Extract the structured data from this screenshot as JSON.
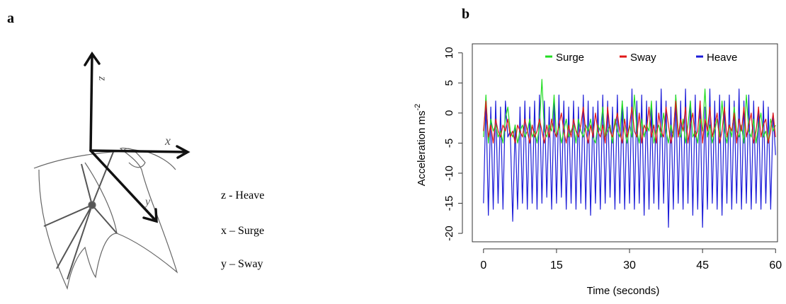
{
  "panel_a": {
    "label": "a",
    "axes": {
      "z": "z",
      "x": "x",
      "y": "y"
    },
    "key": [
      "z - Heave",
      "x – Surge",
      "y – Sway"
    ]
  },
  "chart_data": {
    "type": "line",
    "panel_label": "b",
    "xlabel": "Time (seconds)",
    "ylabel": {
      "text": "Acceleration ms",
      "superscript": "-2"
    },
    "xlim": [
      -2.3,
      60.4
    ],
    "ylim": [
      -21.4,
      11.5
    ],
    "xticks": [
      0,
      15,
      30,
      45,
      60
    ],
    "yticks": [
      -20,
      -15,
      -10,
      -5,
      0,
      5,
      10
    ],
    "x": [
      0,
      0.5,
      1,
      1.5,
      2,
      2.5,
      3,
      3.5,
      4,
      4.5,
      5,
      5.5,
      6,
      6.5,
      7,
      7.5,
      8,
      8.5,
      9,
      9.5,
      10,
      10.5,
      11,
      11.5,
      12,
      12.5,
      13,
      13.5,
      14,
      14.5,
      15,
      15.5,
      16,
      16.5,
      17,
      17.5,
      18,
      18.5,
      19,
      19.5,
      20,
      20.5,
      21,
      21.5,
      22,
      22.5,
      23,
      23.5,
      24,
      24.5,
      25,
      25.5,
      26,
      26.5,
      27,
      27.5,
      28,
      28.5,
      29,
      29.5,
      30,
      30.5,
      31,
      31.5,
      32,
      32.5,
      33,
      33.5,
      34,
      34.5,
      35,
      35.5,
      36,
      36.5,
      37,
      37.5,
      38,
      38.5,
      39,
      39.5,
      40,
      40.5,
      41,
      41.5,
      42,
      42.5,
      43,
      43.5,
      44,
      44.5,
      45,
      45.5,
      46,
      46.5,
      47,
      47.5,
      48,
      48.5,
      49,
      49.5,
      50,
      50.5,
      51,
      51.5,
      52,
      52.5,
      53,
      53.5,
      54,
      54.5,
      55,
      55.5,
      56,
      56.5,
      57,
      57.5,
      58,
      58.5,
      59,
      59.5,
      60
    ],
    "series": [
      {
        "name": "Heave",
        "color": "#1c1cd8",
        "values": [
          -15,
          2,
          -17,
          1,
          -16,
          2,
          -15,
          1,
          -16,
          2,
          -4,
          -3,
          -18,
          -2,
          -16,
          1,
          -15,
          2,
          -16,
          1,
          -15,
          2,
          -16,
          3,
          -15,
          2,
          -14,
          1,
          -16,
          2,
          -15,
          3,
          -14,
          2,
          -16,
          1,
          -15,
          2,
          -16,
          1,
          -15,
          3,
          -16,
          2,
          -17,
          1,
          -15,
          2,
          -16,
          3,
          -15,
          2,
          -14,
          1,
          -16,
          3,
          -15,
          2,
          -16,
          1,
          -15,
          4,
          -16,
          2,
          -15,
          3,
          -17,
          2,
          -16,
          1,
          -15,
          2,
          -16,
          4,
          -15,
          2,
          -19,
          1,
          -16,
          3,
          -15,
          2,
          -16,
          4,
          -15,
          2,
          -17,
          3,
          -16,
          2,
          -19,
          1,
          -16,
          4,
          -15,
          2,
          -16,
          3,
          -17,
          2,
          -15,
          3,
          -16,
          2,
          -15,
          4,
          -16,
          2,
          -15,
          3,
          -16,
          2,
          -15,
          1,
          -16,
          2,
          -15,
          1,
          -16,
          0,
          -7
        ]
      },
      {
        "name": "Surge",
        "color": "#22dd22",
        "values": [
          -4,
          3,
          -5,
          -1,
          -3,
          -2,
          -4,
          -3,
          -5,
          -1,
          1,
          -3,
          -4,
          -2,
          -5,
          -3,
          -2,
          -4,
          -3,
          -1,
          -4,
          -3,
          -5,
          -2,
          5.6,
          -3,
          -4,
          -2,
          -3,
          3,
          -4,
          -2,
          -5,
          -3,
          -1,
          -4,
          -3,
          -2,
          -5,
          -1,
          -3,
          -4,
          -2,
          -3,
          -1,
          -4,
          -5,
          -2,
          -3,
          1,
          -4,
          -3,
          -2,
          -5,
          -1,
          -3,
          -4,
          2,
          -3,
          -5,
          -2,
          -4,
          3,
          -3,
          -5,
          -1,
          -4,
          -2,
          -3,
          2,
          -5,
          -3,
          -2,
          -4,
          0,
          -3,
          -5,
          -2,
          -4,
          3,
          -3,
          -4,
          -1,
          -5,
          -2,
          2,
          -4,
          -3,
          -5,
          -1,
          -3,
          4,
          -4,
          -2,
          -5,
          -3,
          -1,
          -4,
          2,
          -3,
          -5,
          -2,
          -4,
          1,
          -3,
          -4,
          -2,
          -5,
          3,
          -3,
          -4,
          -1,
          -5,
          -2,
          0,
          -4,
          -3,
          -5,
          -1,
          -3,
          -2
        ]
      },
      {
        "name": "Sway",
        "color": "#e01818",
        "values": [
          -3,
          2,
          -4,
          -2,
          -5,
          -1,
          -3,
          -4,
          -2,
          -3,
          -1,
          -4,
          -3,
          -5,
          -2,
          -3,
          -4,
          -1,
          -3,
          -5,
          -2,
          -4,
          -3,
          -1,
          -3,
          -5,
          -2,
          -4,
          -1,
          -3,
          -4,
          -2,
          0,
          -3,
          -5,
          -2,
          -4,
          -1,
          -3,
          -4,
          -2,
          1,
          -3,
          -5,
          -2,
          -4,
          0,
          -3,
          -4,
          -2,
          -5,
          1,
          -3,
          -4,
          -2,
          0,
          -3,
          -5,
          -1,
          -4,
          -2,
          1,
          -3,
          -4,
          0,
          -5,
          -2,
          -3,
          1,
          -4,
          -2,
          -5,
          0,
          -3,
          -4,
          1,
          -2,
          -5,
          -3,
          2,
          -4,
          -1,
          -3,
          1,
          -5,
          -2,
          0,
          -4,
          -3,
          2,
          -5,
          -1,
          -3,
          1,
          -4,
          -2,
          0,
          -5,
          -3,
          1,
          -4,
          -2,
          -3,
          0,
          -5,
          -1,
          -3,
          1,
          -4,
          -2,
          0,
          -5,
          -3,
          1,
          -4,
          -2,
          -1,
          -5,
          -3,
          0,
          -4
        ]
      }
    ],
    "legend_position": "top",
    "draw_order": [
      "Heave",
      "Surge",
      "Sway"
    ]
  }
}
